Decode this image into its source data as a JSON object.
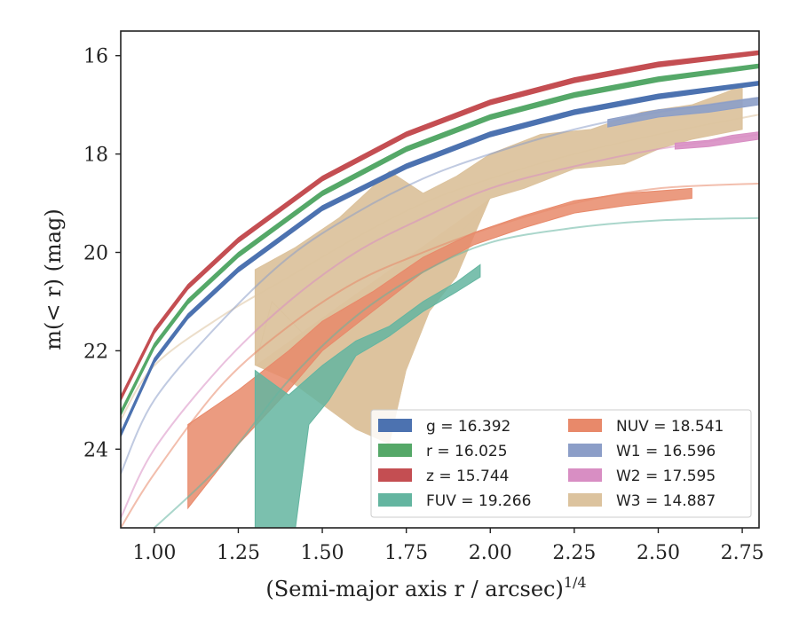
{
  "chart_data": {
    "type": "line",
    "xlabel": "(Semi-major axis r / arcsec)",
    "xlabel_sup": "1/4",
    "ylabel": "m(< r) (mag)",
    "xlim": [
      0.9,
      2.8
    ],
    "ylim": [
      25.6,
      15.5
    ],
    "y_inverted": true,
    "x_ticks": [
      1.0,
      1.25,
      1.5,
      1.75,
      2.0,
      2.25,
      2.5,
      2.75
    ],
    "x_tick_labels": [
      "1.00",
      "1.25",
      "1.50",
      "1.75",
      "2.00",
      "2.25",
      "2.50",
      "2.75"
    ],
    "y_ticks": [
      16,
      18,
      20,
      22,
      24
    ],
    "y_tick_labels": [
      "16",
      "18",
      "20",
      "22",
      "24"
    ],
    "legend_position": "lower-right",
    "series": [
      {
        "name": "g = 16.392",
        "color": "#4c72b0",
        "kind": "band",
        "fill_opacity": 1.0,
        "upper": [
          [
            0.9,
            23.65
          ],
          [
            1.0,
            22.15
          ],
          [
            1.1,
            21.25
          ],
          [
            1.25,
            20.3
          ],
          [
            1.5,
            19.05
          ],
          [
            1.75,
            18.2
          ],
          [
            2.0,
            17.55
          ],
          [
            2.25,
            17.1
          ],
          [
            2.5,
            16.78
          ],
          [
            2.8,
            16.52
          ]
        ],
        "lower": [
          [
            0.9,
            23.75
          ],
          [
            1.0,
            22.25
          ],
          [
            1.1,
            21.35
          ],
          [
            1.25,
            20.4
          ],
          [
            1.5,
            19.15
          ],
          [
            1.75,
            18.3
          ],
          [
            2.0,
            17.65
          ],
          [
            2.25,
            17.2
          ],
          [
            2.5,
            16.88
          ],
          [
            2.8,
            16.6
          ]
        ]
      },
      {
        "name": "r = 16.025",
        "color": "#55a868",
        "kind": "band",
        "fill_opacity": 1.0,
        "upper": [
          [
            0.9,
            23.22
          ],
          [
            1.0,
            21.85
          ],
          [
            1.1,
            20.95
          ],
          [
            1.25,
            20.0
          ],
          [
            1.5,
            18.75
          ],
          [
            1.75,
            17.85
          ],
          [
            2.0,
            17.2
          ],
          [
            2.25,
            16.75
          ],
          [
            2.5,
            16.43
          ],
          [
            2.8,
            16.17
          ]
        ],
        "lower": [
          [
            0.9,
            23.32
          ],
          [
            1.0,
            21.95
          ],
          [
            1.1,
            21.05
          ],
          [
            1.25,
            20.1
          ],
          [
            1.5,
            18.85
          ],
          [
            1.75,
            17.95
          ],
          [
            2.0,
            17.3
          ],
          [
            2.25,
            16.85
          ],
          [
            2.5,
            16.53
          ],
          [
            2.8,
            16.25
          ]
        ]
      },
      {
        "name": "z = 15.744",
        "color": "#c44e52",
        "kind": "band",
        "fill_opacity": 1.0,
        "upper": [
          [
            0.9,
            22.92
          ],
          [
            1.0,
            21.55
          ],
          [
            1.1,
            20.65
          ],
          [
            1.25,
            19.7
          ],
          [
            1.5,
            18.45
          ],
          [
            1.75,
            17.55
          ],
          [
            2.0,
            16.9
          ],
          [
            2.25,
            16.45
          ],
          [
            2.5,
            16.13
          ],
          [
            2.8,
            15.9
          ]
        ],
        "lower": [
          [
            0.9,
            23.02
          ],
          [
            1.0,
            21.65
          ],
          [
            1.1,
            20.75
          ],
          [
            1.25,
            19.8
          ],
          [
            1.5,
            18.55
          ],
          [
            1.75,
            17.65
          ],
          [
            2.0,
            17.0
          ],
          [
            2.25,
            16.55
          ],
          [
            2.5,
            16.23
          ],
          [
            2.8,
            15.98
          ]
        ]
      },
      {
        "name": "FUV = 19.266",
        "color": "#64b5a0",
        "kind": "band",
        "fill_opacity": 0.85,
        "upper": [
          [
            1.3,
            22.4
          ],
          [
            1.32,
            22.5
          ],
          [
            1.4,
            22.9
          ],
          [
            1.5,
            22.3
          ],
          [
            1.6,
            21.8
          ],
          [
            1.7,
            21.5
          ],
          [
            1.8,
            21.0
          ],
          [
            1.9,
            20.6
          ],
          [
            1.97,
            20.25
          ]
        ],
        "lower": [
          [
            1.3,
            25.6
          ],
          [
            1.42,
            25.6
          ],
          [
            1.46,
            23.5
          ],
          [
            1.52,
            23.0
          ],
          [
            1.6,
            22.1
          ],
          [
            1.7,
            21.7
          ],
          [
            1.8,
            21.2
          ],
          [
            1.9,
            20.8
          ],
          [
            1.97,
            20.5
          ]
        ],
        "model": [
          [
            1.0,
            25.6
          ],
          [
            1.2,
            24.3
          ],
          [
            1.4,
            22.6
          ],
          [
            1.6,
            21.3
          ],
          [
            1.8,
            20.4
          ],
          [
            2.0,
            19.8
          ],
          [
            2.25,
            19.5
          ],
          [
            2.5,
            19.35
          ],
          [
            2.8,
            19.3
          ]
        ]
      },
      {
        "name": "NUV = 18.541",
        "color": "#e8896a",
        "kind": "band",
        "fill_opacity": 0.85,
        "upper": [
          [
            1.1,
            23.5
          ],
          [
            1.25,
            22.8
          ],
          [
            1.4,
            22.0
          ],
          [
            1.5,
            21.4
          ],
          [
            1.65,
            20.8
          ],
          [
            1.8,
            20.1
          ],
          [
            1.95,
            19.6
          ],
          [
            2.1,
            19.25
          ],
          [
            2.25,
            18.95
          ],
          [
            2.4,
            18.8
          ],
          [
            2.6,
            18.7
          ]
        ],
        "lower": [
          [
            1.1,
            25.2
          ],
          [
            1.25,
            23.9
          ],
          [
            1.4,
            22.8
          ],
          [
            1.5,
            22.0
          ],
          [
            1.65,
            21.2
          ],
          [
            1.8,
            20.4
          ],
          [
            1.95,
            19.85
          ],
          [
            2.1,
            19.5
          ],
          [
            2.25,
            19.2
          ],
          [
            2.4,
            19.05
          ],
          [
            2.6,
            18.9
          ]
        ],
        "model": [
          [
            0.9,
            25.6
          ],
          [
            1.0,
            24.5
          ],
          [
            1.2,
            22.7
          ],
          [
            1.4,
            21.5
          ],
          [
            1.6,
            20.6
          ],
          [
            1.8,
            20.0
          ],
          [
            2.0,
            19.5
          ],
          [
            2.25,
            19.0
          ],
          [
            2.5,
            18.7
          ],
          [
            2.8,
            18.6
          ]
        ]
      },
      {
        "name": "W1 = 16.596",
        "color": "#8c9ec8",
        "kind": "band",
        "fill_opacity": 0.9,
        "upper": [
          [
            2.35,
            17.3
          ],
          [
            2.5,
            17.1
          ],
          [
            2.65,
            17.0
          ],
          [
            2.8,
            16.85
          ]
        ],
        "lower": [
          [
            2.35,
            17.45
          ],
          [
            2.5,
            17.25
          ],
          [
            2.65,
            17.15
          ],
          [
            2.8,
            17.0
          ]
        ],
        "model": [
          [
            0.9,
            24.5
          ],
          [
            1.0,
            23.0
          ],
          [
            1.2,
            21.4
          ],
          [
            1.4,
            20.1
          ],
          [
            1.6,
            19.2
          ],
          [
            1.8,
            18.5
          ],
          [
            2.0,
            18.0
          ],
          [
            2.25,
            17.5
          ],
          [
            2.5,
            17.15
          ],
          [
            2.8,
            16.85
          ]
        ]
      },
      {
        "name": "W2 = 17.595",
        "color": "#d88ec3",
        "kind": "band",
        "fill_opacity": 0.9,
        "upper": [
          [
            2.55,
            17.78
          ],
          [
            2.65,
            17.72
          ],
          [
            2.72,
            17.62
          ],
          [
            2.8,
            17.55
          ]
        ],
        "lower": [
          [
            2.55,
            17.9
          ],
          [
            2.65,
            17.85
          ],
          [
            2.72,
            17.78
          ],
          [
            2.8,
            17.7
          ]
        ],
        "model": [
          [
            0.9,
            25.4
          ],
          [
            1.0,
            24.0
          ],
          [
            1.2,
            22.3
          ],
          [
            1.4,
            21.0
          ],
          [
            1.6,
            20.0
          ],
          [
            1.8,
            19.3
          ],
          [
            2.0,
            18.7
          ],
          [
            2.25,
            18.25
          ],
          [
            2.5,
            17.9
          ],
          [
            2.8,
            17.6
          ]
        ]
      },
      {
        "name": "W3 = 14.887",
        "color": "#dcc39e",
        "kind": "band",
        "fill_opacity": 0.95,
        "upper": [
          [
            1.3,
            20.35
          ],
          [
            1.42,
            19.9
          ],
          [
            1.55,
            19.3
          ],
          [
            1.7,
            18.35
          ],
          [
            1.8,
            18.8
          ],
          [
            1.9,
            18.45
          ],
          [
            2.0,
            18.0
          ],
          [
            2.15,
            17.6
          ],
          [
            2.3,
            17.5
          ],
          [
            2.45,
            17.15
          ],
          [
            2.6,
            17.0
          ],
          [
            2.7,
            16.75
          ],
          [
            2.75,
            16.6
          ]
        ],
        "lower": [
          [
            1.3,
            22.3
          ],
          [
            1.35,
            21.0
          ],
          [
            1.45,
            21.7
          ],
          [
            1.55,
            21.4
          ],
          [
            1.7,
            20.7
          ],
          [
            1.85,
            20.1
          ],
          [
            2.0,
            18.9
          ],
          [
            2.1,
            18.7
          ],
          [
            2.25,
            18.3
          ],
          [
            2.4,
            18.2
          ],
          [
            2.5,
            17.9
          ],
          [
            2.6,
            17.7
          ],
          [
            2.75,
            17.5
          ]
        ],
        "lower_extra": [
          [
            1.3,
            22.3
          ],
          [
            1.4,
            22.6
          ],
          [
            1.5,
            23.1
          ],
          [
            1.6,
            23.6
          ],
          [
            1.7,
            23.9
          ],
          [
            1.75,
            22.4
          ],
          [
            1.82,
            21.2
          ],
          [
            1.9,
            20.5
          ],
          [
            2.0,
            18.9
          ]
        ],
        "model": [
          [
            0.9,
            23.4
          ],
          [
            1.0,
            22.3
          ],
          [
            1.2,
            21.3
          ],
          [
            1.4,
            20.5
          ],
          [
            1.6,
            19.7
          ],
          [
            1.8,
            19.0
          ],
          [
            2.0,
            18.5
          ],
          [
            2.25,
            18.0
          ],
          [
            2.5,
            17.6
          ],
          [
            2.8,
            17.2
          ]
        ]
      }
    ]
  },
  "legend": {
    "items": [
      {
        "label": "g = 16.392",
        "color": "#4c72b0"
      },
      {
        "label": "r = 16.025",
        "color": "#55a868"
      },
      {
        "label": "z = 15.744",
        "color": "#c44e52"
      },
      {
        "label": "FUV = 19.266",
        "color": "#64b5a0"
      },
      {
        "label": "NUV = 18.541",
        "color": "#e8896a"
      },
      {
        "label": "W1 = 16.596",
        "color": "#8c9ec8"
      },
      {
        "label": "W2 = 17.595",
        "color": "#d88ec3"
      },
      {
        "label": "W3 = 14.887",
        "color": "#dcc39e"
      }
    ]
  }
}
